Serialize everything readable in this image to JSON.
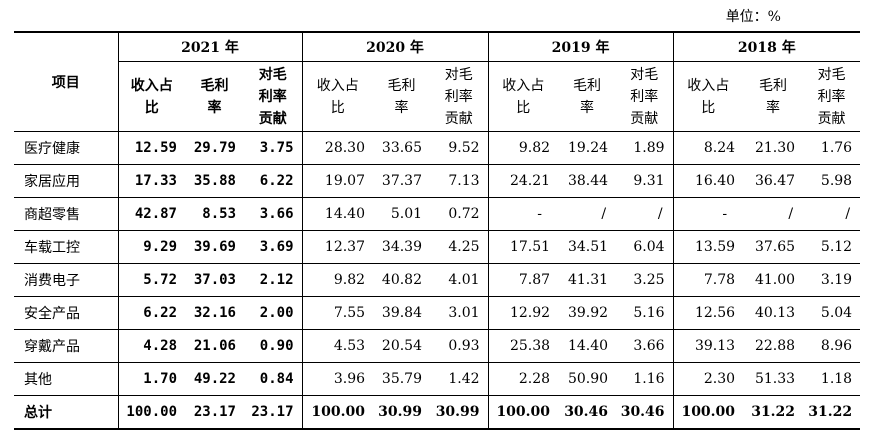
{
  "unit_label": "单位：%",
  "header": {
    "item_label": "项目",
    "years": [
      "2021 年",
      "2020 年",
      "2019 年",
      "2018 年"
    ],
    "sub_col_1": [
      "收入占",
      "比"
    ],
    "sub_col_2": [
      "毛利",
      "率"
    ],
    "sub_col_3": [
      "对毛",
      "利率",
      "贡献"
    ]
  },
  "rows": [
    {
      "name": "医疗健康",
      "v": [
        "12.59",
        "29.79",
        "3.75",
        "28.30",
        "33.65",
        "9.52",
        "9.82",
        "19.24",
        "1.89",
        "8.24",
        "21.30",
        "1.76"
      ]
    },
    {
      "name": "家居应用",
      "v": [
        "17.33",
        "35.88",
        "6.22",
        "19.07",
        "37.37",
        "7.13",
        "24.21",
        "38.44",
        "9.31",
        "16.40",
        "36.47",
        "5.98"
      ]
    },
    {
      "name": "商超零售",
      "v": [
        "42.87",
        "8.53",
        "3.66",
        "14.40",
        "5.01",
        "0.72",
        "-",
        "/",
        "/",
        "-",
        "/",
        "/"
      ]
    },
    {
      "name": "车载工控",
      "v": [
        "9.29",
        "39.69",
        "3.69",
        "12.37",
        "34.39",
        "4.25",
        "17.51",
        "34.51",
        "6.04",
        "13.59",
        "37.65",
        "5.12"
      ]
    },
    {
      "name": "消费电子",
      "v": [
        "5.72",
        "37.03",
        "2.12",
        "9.82",
        "40.82",
        "4.01",
        "7.87",
        "41.31",
        "3.25",
        "7.78",
        "41.00",
        "3.19"
      ]
    },
    {
      "name": "安全产品",
      "v": [
        "6.22",
        "32.16",
        "2.00",
        "7.55",
        "39.84",
        "3.01",
        "12.92",
        "39.92",
        "5.16",
        "12.56",
        "40.13",
        "5.04"
      ]
    },
    {
      "name": "穿戴产品",
      "v": [
        "4.28",
        "21.06",
        "0.90",
        "4.53",
        "20.54",
        "0.93",
        "25.38",
        "14.40",
        "3.66",
        "39.13",
        "22.88",
        "8.96"
      ]
    },
    {
      "name": "其他",
      "v": [
        "1.70",
        "49.22",
        "0.84",
        "3.96",
        "35.79",
        "1.42",
        "2.28",
        "50.90",
        "1.16",
        "2.30",
        "51.33",
        "1.18"
      ]
    }
  ],
  "total": {
    "name": "总计",
    "v": [
      "100.00",
      "23.17",
      "23.17",
      "100.00",
      "30.99",
      "30.99",
      "100.00",
      "30.46",
      "30.46",
      "100.00",
      "31.22",
      "31.22"
    ]
  }
}
